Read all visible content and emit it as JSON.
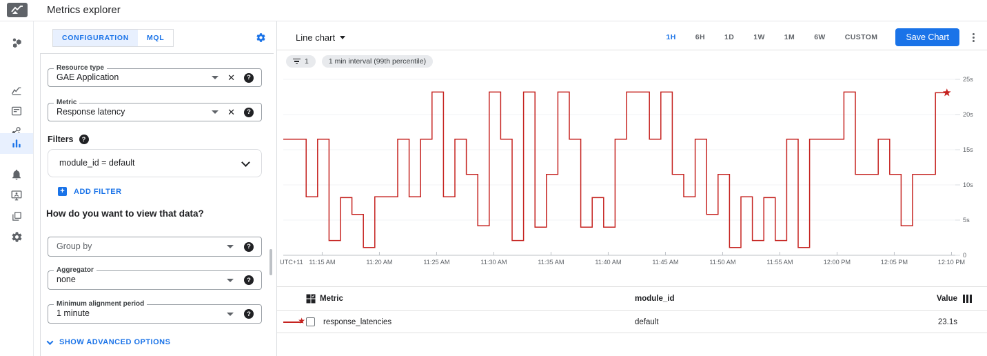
{
  "topbar": {
    "title": "Metrics explorer"
  },
  "sidebar": {
    "items": [
      {
        "icon": "monitoring-overview-icon"
      },
      {
        "icon": "metrics-icon"
      },
      {
        "icon": "dashboards-icon"
      },
      {
        "icon": "services-icon"
      },
      {
        "icon": "metrics-explorer-icon",
        "active": true
      },
      {
        "icon": "alerting-icon"
      },
      {
        "icon": "uptime-checks-icon"
      },
      {
        "icon": "groups-icon"
      },
      {
        "icon": "settings-icon"
      }
    ]
  },
  "config": {
    "tabs": {
      "configuration": "CONFIGURATION",
      "mql": "MQL"
    },
    "resource_type": {
      "label": "Resource type",
      "value": "GAE Application"
    },
    "metric": {
      "label": "Metric",
      "value": "Response latency"
    },
    "filters_label": "Filters",
    "filter_value": "module_id = default",
    "add_filter_label": "ADD FILTER",
    "view_heading": "How do you want to view that data?",
    "group_by": {
      "placeholder": "Group by"
    },
    "aggregator": {
      "label": "Aggregator",
      "value": "none"
    },
    "min_alignment": {
      "label": "Minimum alignment period",
      "value": "1 minute"
    },
    "show_advanced_label": "SHOW ADVANCED OPTIONS"
  },
  "chart_header": {
    "chart_type_label": "Line chart",
    "time_ranges": [
      "1H",
      "6H",
      "1D",
      "1W",
      "1M",
      "6W",
      "CUSTOM"
    ],
    "active_time_range": "1H",
    "save_button_label": "Save Chart",
    "filter_chip_count": "1",
    "interval_chip": "1 min interval (99th percentile)"
  },
  "chart_data": {
    "type": "line",
    "subtype": "step",
    "line_color": "#c5221f",
    "x_corner_label": "UTC+11",
    "x_tick_labels": [
      "11:15 AM",
      "11:20 AM",
      "11:25 AM",
      "11:30 AM",
      "11:35 AM",
      "11:40 AM",
      "11:45 AM",
      "11:50 AM",
      "11:55 AM",
      "12:00 PM",
      "12:05 PM",
      "12:10 PM"
    ],
    "y_tick_labels": [
      "0",
      "5s",
      "10s",
      "15s",
      "20s",
      "25s"
    ],
    "y_tick_values": [
      0,
      5,
      10,
      15,
      20,
      25
    ],
    "ylim": [
      0,
      25
    ],
    "interval_minutes": 1,
    "start_time": "11:12 AM",
    "grid": true,
    "end_marker": "star",
    "series": [
      {
        "name": "response_latencies",
        "values": [
          16.5,
          16.5,
          8.3,
          16.5,
          2.1,
          8.2,
          5.8,
          1.1,
          8.3,
          8.3,
          16.5,
          8.3,
          16.5,
          23.2,
          8.3,
          16.5,
          11.5,
          4.2,
          23.2,
          16.5,
          2.1,
          23.2,
          4.0,
          11.5,
          23.2,
          16.5,
          4.0,
          8.2,
          4.0,
          16.5,
          23.2,
          23.2,
          16.5,
          23.2,
          11.5,
          8.3,
          16.5,
          5.8,
          11.5,
          1.1,
          8.3,
          2.1,
          8.2,
          2.1,
          16.5,
          1.1,
          16.5,
          16.5,
          16.5,
          23.2,
          11.5,
          11.5,
          16.5,
          11.5,
          4.2,
          11.5,
          11.5,
          23.1,
          23.1
        ]
      }
    ]
  },
  "table": {
    "columns": {
      "metric": "Metric",
      "module_id": "module_id",
      "value": "Value"
    },
    "rows": [
      {
        "metric": "response_latencies",
        "module_id": "default",
        "value": "23.1s"
      }
    ]
  },
  "colors": {
    "accent": "#1a73e8",
    "accent_bg": "#e8f0fe",
    "line": "#c5221f"
  }
}
